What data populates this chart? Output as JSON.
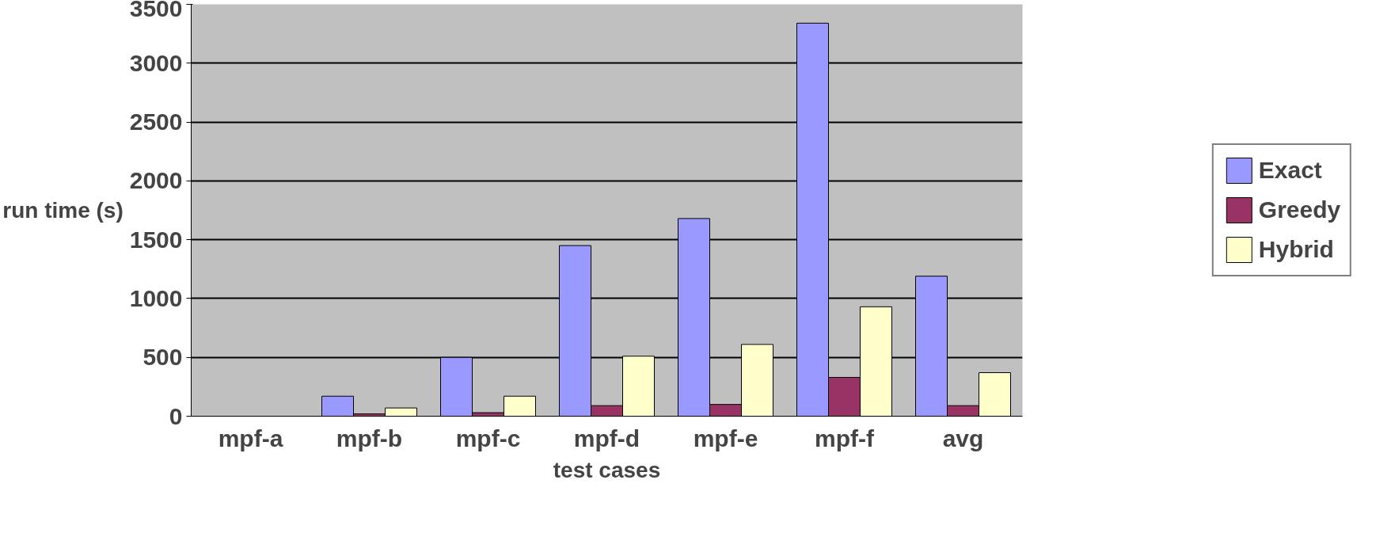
{
  "chart_data": {
    "type": "bar",
    "xlabel": "test cases",
    "ylabel": "run time (s)",
    "categories": [
      "mpf-a",
      "mpf-b",
      "mpf-c",
      "mpf-d",
      "mpf-e",
      "mpf-f",
      "avg"
    ],
    "series": [
      {
        "name": "Exact",
        "color": "#9999ff",
        "values": [
          null,
          170,
          500,
          1450,
          1680,
          3340,
          1190
        ]
      },
      {
        "name": "Greedy",
        "color": "#993366",
        "values": [
          null,
          20,
          30,
          90,
          100,
          330,
          90
        ]
      },
      {
        "name": "Hybrid",
        "color": "#ffffcc",
        "values": [
          null,
          70,
          170,
          510,
          610,
          930,
          370
        ]
      }
    ],
    "ylim": [
      0,
      3500
    ],
    "yticks": [
      0,
      500,
      1000,
      1500,
      2000,
      2500,
      3000,
      3500
    ],
    "grid": "y",
    "legend": "right"
  }
}
